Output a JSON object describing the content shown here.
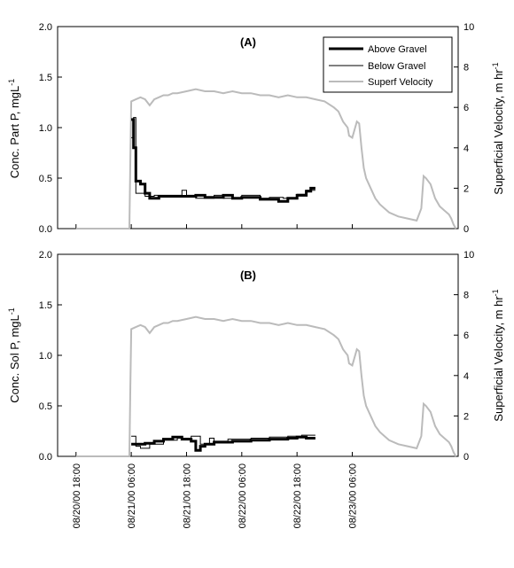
{
  "chart_data": [
    {
      "type": "line",
      "panel_label": "(A)",
      "ylabel": "Conc. Part P, mgL",
      "ylabel_sup": "-1",
      "ylim": [
        0,
        2.0
      ],
      "yticks": [
        "0.0",
        "0.5",
        "1.0",
        "1.5",
        "2.0"
      ],
      "y2label": "Superficial Velocity, m hr",
      "y2label_sup": "-1",
      "y2lim": [
        0,
        10
      ],
      "y2ticks": [
        "0",
        "2",
        "4",
        "6",
        "8",
        "10"
      ],
      "legend_position": "top-right",
      "series": [
        {
          "name": "Above Gravel",
          "color": "#000000",
          "axis": "left",
          "x": [
            12,
            12.5,
            12.5,
            13,
            13,
            14,
            14,
            15,
            15,
            16,
            16,
            18,
            18,
            26,
            26,
            28,
            28,
            32,
            32,
            34,
            34,
            36,
            36,
            40,
            40,
            44,
            44,
            46,
            46,
            48,
            48,
            50,
            50,
            51,
            51,
            52
          ],
          "y": [
            1.08,
            1.08,
            0.8,
            0.8,
            0.47,
            0.47,
            0.44,
            0.44,
            0.35,
            0.35,
            0.3,
            0.3,
            0.32,
            0.32,
            0.33,
            0.33,
            0.31,
            0.31,
            0.33,
            0.33,
            0.3,
            0.3,
            0.31,
            0.31,
            0.29,
            0.29,
            0.27,
            0.27,
            0.3,
            0.3,
            0.33,
            0.33,
            0.37,
            0.37,
            0.4,
            0.4
          ]
        },
        {
          "name": "Below Gravel",
          "color": "#000000",
          "axis": "left",
          "x": [
            12,
            12.5,
            12.5,
            13,
            13,
            15,
            15,
            17,
            17,
            20,
            20,
            23,
            23,
            24,
            24,
            26,
            26,
            30,
            30,
            32,
            32,
            36,
            36,
            40,
            40,
            42,
            42,
            45,
            45,
            48,
            48,
            50,
            50,
            52
          ],
          "y": [
            0.9,
            0.9,
            1.1,
            1.1,
            0.35,
            0.35,
            0.32,
            0.32,
            0.33,
            0.33,
            0.33,
            0.33,
            0.38,
            0.38,
            0.33,
            0.33,
            0.3,
            0.3,
            0.33,
            0.33,
            0.3,
            0.3,
            0.33,
            0.33,
            0.3,
            0.3,
            0.31,
            0.31,
            0.3,
            0.3,
            0.34,
            0.34,
            0.38,
            0.38
          ]
        },
        {
          "name": "Superf Velocity",
          "color": "#bbbbbb",
          "axis": "right",
          "x": [
            0,
            11.6,
            11.8,
            12,
            13,
            14,
            15,
            16,
            17,
            18,
            19,
            20,
            21,
            22,
            24,
            26,
            28,
            30,
            32,
            34,
            36,
            38,
            40,
            42,
            44,
            46,
            48,
            50,
            52,
            54,
            56,
            57,
            58,
            59,
            59.3,
            60,
            61,
            61.5,
            62,
            62.5,
            63,
            64,
            65,
            66,
            67,
            68,
            70,
            72,
            74,
            75,
            75.5,
            76,
            77,
            78,
            79,
            80,
            81,
            81.5,
            82,
            82.5
          ],
          "y": [
            0,
            0,
            3.5,
            6.3,
            6.4,
            6.5,
            6.4,
            6.1,
            6.4,
            6.5,
            6.6,
            6.6,
            6.7,
            6.7,
            6.8,
            6.9,
            6.8,
            6.8,
            6.7,
            6.8,
            6.7,
            6.7,
            6.6,
            6.6,
            6.5,
            6.6,
            6.5,
            6.5,
            6.4,
            6.3,
            6.0,
            5.8,
            5.3,
            5.0,
            4.6,
            4.5,
            5.3,
            5.2,
            4.0,
            3.0,
            2.5,
            2.0,
            1.5,
            1.2,
            1.0,
            0.8,
            0.6,
            0.5,
            0.4,
            1.0,
            2.6,
            2.5,
            2.2,
            1.5,
            1.1,
            0.9,
            0.7,
            0.5,
            0.2,
            0
          ]
        }
      ]
    },
    {
      "type": "line",
      "panel_label": "(B)",
      "ylabel": "Conc. Sol P, mgL",
      "ylabel_sup": "-1",
      "ylim": [
        0,
        2.0
      ],
      "yticks": [
        "0.0",
        "0.5",
        "1.0",
        "1.5",
        "2.0"
      ],
      "y2label": "Superficial Velocity, m hr",
      "y2label_sup": "-1",
      "y2lim": [
        0,
        10
      ],
      "y2ticks": [
        "0",
        "2",
        "4",
        "6",
        "8",
        "10"
      ],
      "xticks": [
        "08/20/00 18:00",
        "08/21/00 06:00",
        "08/21/00 18:00",
        "08/22/00 06:00",
        "08/22/00 18:00",
        "08/23/00 06:00"
      ],
      "xtick_hours": [
        0,
        12,
        24,
        36,
        48,
        60
      ],
      "xlim": [
        -4,
        83
      ],
      "series": [
        {
          "name": "Above Gravel",
          "color": "#000000",
          "axis": "left",
          "x": [
            12,
            15,
            15,
            17,
            17,
            19,
            19,
            21,
            21,
            23,
            23,
            25,
            25,
            26,
            26,
            27,
            27,
            28,
            28,
            30,
            30,
            34,
            34,
            38,
            38,
            42,
            42,
            46,
            46,
            48,
            48,
            50,
            50,
            52
          ],
          "y": [
            0.12,
            0.12,
            0.13,
            0.13,
            0.15,
            0.15,
            0.17,
            0.17,
            0.19,
            0.19,
            0.17,
            0.17,
            0.15,
            0.15,
            0.06,
            0.06,
            0.1,
            0.1,
            0.12,
            0.12,
            0.14,
            0.14,
            0.15,
            0.15,
            0.16,
            0.16,
            0.17,
            0.17,
            0.18,
            0.18,
            0.19,
            0.19,
            0.18,
            0.18
          ]
        },
        {
          "name": "Below Gravel",
          "color": "#000000",
          "axis": "left",
          "x": [
            12,
            13,
            13,
            14,
            14,
            16,
            16,
            19,
            19,
            22,
            22,
            25,
            25,
            27,
            27,
            29,
            29,
            30,
            30,
            33,
            33,
            38,
            38,
            42,
            42,
            46,
            46,
            49,
            49,
            52
          ],
          "y": [
            0.2,
            0.2,
            0.1,
            0.1,
            0.08,
            0.08,
            0.12,
            0.12,
            0.16,
            0.16,
            0.18,
            0.18,
            0.2,
            0.2,
            0.12,
            0.12,
            0.18,
            0.18,
            0.15,
            0.15,
            0.17,
            0.17,
            0.18,
            0.18,
            0.19,
            0.19,
            0.2,
            0.2,
            0.21,
            0.21
          ]
        },
        {
          "name": "Superf Velocity",
          "color": "#bbbbbb",
          "axis": "right",
          "x": [
            0,
            11.6,
            11.8,
            12,
            13,
            14,
            15,
            16,
            17,
            18,
            19,
            20,
            21,
            22,
            24,
            26,
            28,
            30,
            32,
            34,
            36,
            38,
            40,
            42,
            44,
            46,
            48,
            50,
            52,
            54,
            56,
            57,
            58,
            59,
            59.3,
            60,
            61,
            61.5,
            62,
            62.5,
            63,
            64,
            65,
            66,
            67,
            68,
            70,
            72,
            74,
            75,
            75.5,
            76,
            77,
            78,
            79,
            80,
            81,
            81.5,
            82,
            82.5
          ],
          "y": [
            0,
            0,
            3.5,
            6.3,
            6.4,
            6.5,
            6.4,
            6.1,
            6.4,
            6.5,
            6.6,
            6.6,
            6.7,
            6.7,
            6.8,
            6.9,
            6.8,
            6.8,
            6.7,
            6.8,
            6.7,
            6.7,
            6.6,
            6.6,
            6.5,
            6.6,
            6.5,
            6.5,
            6.4,
            6.3,
            6.0,
            5.8,
            5.3,
            5.0,
            4.6,
            4.5,
            5.3,
            5.2,
            4.0,
            3.0,
            2.5,
            2.0,
            1.5,
            1.2,
            1.0,
            0.8,
            0.6,
            0.5,
            0.4,
            1.0,
            2.6,
            2.5,
            2.2,
            1.5,
            1.1,
            0.9,
            0.7,
            0.5,
            0.2,
            0
          ]
        }
      ]
    }
  ]
}
